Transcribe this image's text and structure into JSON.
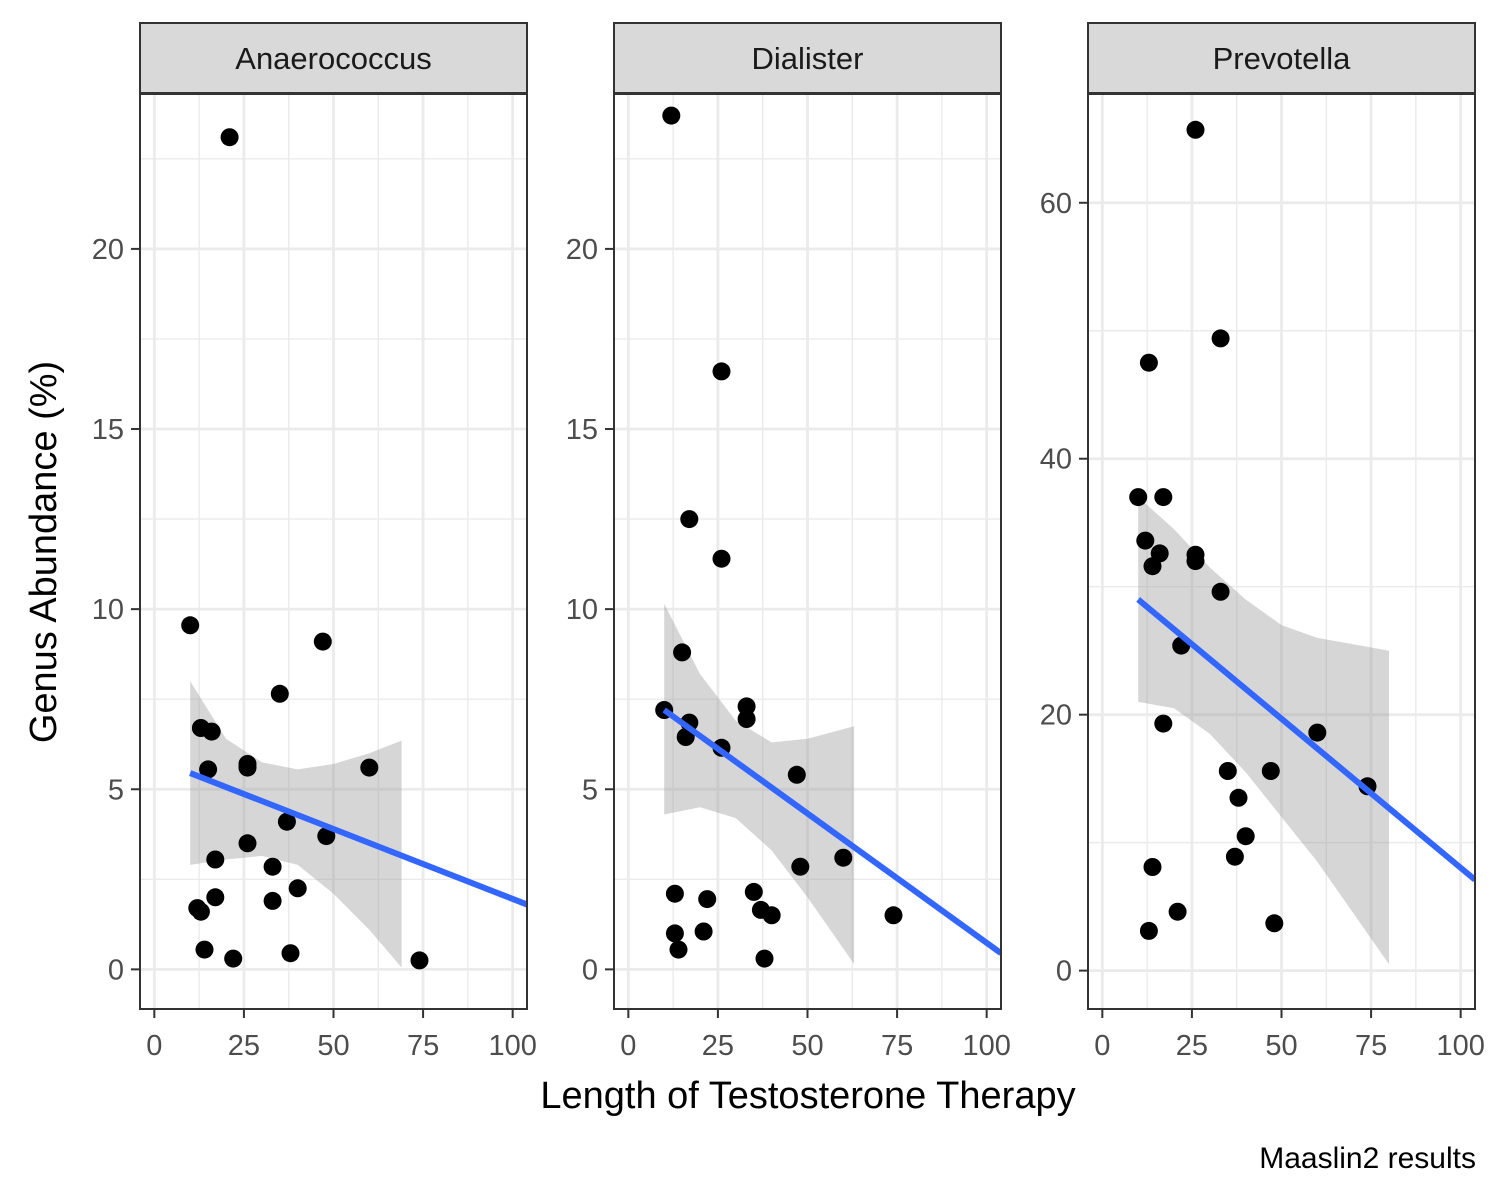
{
  "chart_data": {
    "type": "scatter",
    "facets": [
      {
        "title": "Anaerococcus",
        "x_ticks": [
          0,
          25,
          50,
          75,
          100
        ],
        "y_ticks": [
          0,
          5,
          10,
          15,
          20
        ],
        "xlim": [
          -4,
          104
        ],
        "ylim": [
          -1.1,
          24.3
        ],
        "points": [
          [
            10,
            9.55
          ],
          [
            12,
            1.7
          ],
          [
            13,
            6.7
          ],
          [
            13,
            1.6
          ],
          [
            14,
            0.55
          ],
          [
            15,
            5.55
          ],
          [
            16,
            6.6
          ],
          [
            17,
            3.05
          ],
          [
            17,
            2.0
          ],
          [
            21,
            23.1
          ],
          [
            22,
            0.3
          ],
          [
            26,
            5.6
          ],
          [
            26,
            5.7
          ],
          [
            26,
            3.5
          ],
          [
            33,
            2.85
          ],
          [
            33,
            1.9
          ],
          [
            35,
            7.65
          ],
          [
            37,
            4.1
          ],
          [
            38,
            0.45
          ],
          [
            40,
            2.25
          ],
          [
            47,
            9.1
          ],
          [
            48,
            3.7
          ],
          [
            60,
            5.6
          ],
          [
            74,
            0.25
          ]
        ],
        "fit": {
          "x": [
            10,
            104
          ],
          "y": [
            5.45,
            1.8
          ]
        },
        "band": {
          "x": [
            10,
            20,
            30,
            40,
            50,
            60,
            69
          ],
          "lower": [
            2.9,
            3.05,
            3.15,
            2.9,
            2.1,
            1.1,
            0.05
          ],
          "upper": [
            8.0,
            6.4,
            5.75,
            5.55,
            5.7,
            6.0,
            6.35
          ]
        }
      },
      {
        "title": "Dialister",
        "x_ticks": [
          0,
          25,
          50,
          75,
          100
        ],
        "y_ticks": [
          0,
          5,
          10,
          15,
          20
        ],
        "xlim": [
          -4,
          104
        ],
        "ylim": [
          -1.1,
          24.3
        ],
        "points": [
          [
            10,
            7.2
          ],
          [
            12,
            23.7
          ],
          [
            13,
            2.1
          ],
          [
            13,
            1.0
          ],
          [
            14,
            0.55
          ],
          [
            15,
            8.8
          ],
          [
            16,
            6.45
          ],
          [
            17,
            12.5
          ],
          [
            17,
            6.85
          ],
          [
            21,
            1.05
          ],
          [
            22,
            1.95
          ],
          [
            26,
            16.6
          ],
          [
            26,
            11.4
          ],
          [
            26,
            6.15
          ],
          [
            33,
            7.3
          ],
          [
            33,
            6.95
          ],
          [
            35,
            2.15
          ],
          [
            37,
            1.65
          ],
          [
            38,
            0.3
          ],
          [
            40,
            1.5
          ],
          [
            47,
            5.4
          ],
          [
            48,
            2.85
          ],
          [
            60,
            3.1
          ],
          [
            74,
            1.5
          ]
        ],
        "fit": {
          "x": [
            10,
            104
          ],
          "y": [
            7.2,
            0.45
          ]
        },
        "band": {
          "x": [
            10,
            20,
            30,
            40,
            50,
            63
          ],
          "lower": [
            4.3,
            4.5,
            4.2,
            3.3,
            2.0,
            0.15
          ],
          "upper": [
            10.15,
            8.2,
            6.9,
            6.3,
            6.4,
            6.75
          ]
        }
      },
      {
        "title": "Prevotella",
        "x_ticks": [
          0,
          25,
          50,
          75,
          100
        ],
        "y_ticks": [
          0,
          20,
          40,
          60
        ],
        "xlim": [
          -4,
          104
        ],
        "ylim": [
          -3,
          68.5
        ],
        "points": [
          [
            10,
            37.0
          ],
          [
            12,
            33.6
          ],
          [
            13,
            47.5
          ],
          [
            13,
            3.1
          ],
          [
            14,
            8.1
          ],
          [
            14,
            31.6
          ],
          [
            16,
            32.6
          ],
          [
            17,
            37.0
          ],
          [
            17,
            19.3
          ],
          [
            21,
            4.6
          ],
          [
            22,
            25.4
          ],
          [
            26,
            65.7
          ],
          [
            26,
            32.5
          ],
          [
            26,
            32.0
          ],
          [
            33,
            49.4
          ],
          [
            33,
            29.6
          ],
          [
            35,
            15.6
          ],
          [
            38,
            13.5
          ],
          [
            37,
            8.9
          ],
          [
            40,
            10.5
          ],
          [
            47,
            15.6
          ],
          [
            48,
            3.7
          ],
          [
            60,
            18.6
          ],
          [
            74,
            14.4
          ]
        ],
        "fit": {
          "x": [
            10,
            104
          ],
          "y": [
            29.0,
            7.1
          ]
        },
        "band": {
          "x": [
            10,
            20,
            30,
            40,
            50,
            60,
            70,
            80
          ],
          "lower": [
            21.0,
            20.5,
            18.5,
            15.5,
            12.0,
            8.5,
            4.5,
            0.5
          ],
          "upper": [
            37.0,
            34.5,
            31.5,
            29.0,
            27.0,
            26.0,
            25.5,
            25.0
          ]
        }
      }
    ],
    "xlabel": "Length of Testosterone Therapy",
    "ylabel": "Genus Abundance (%)",
    "caption": "Maaslin2 results",
    "grid": true,
    "colors": {
      "points": "#000000",
      "fit_line": "#3366FF",
      "band": "#999999",
      "strip": "#D9D9D9",
      "grid": "#EBEBEB"
    }
  }
}
